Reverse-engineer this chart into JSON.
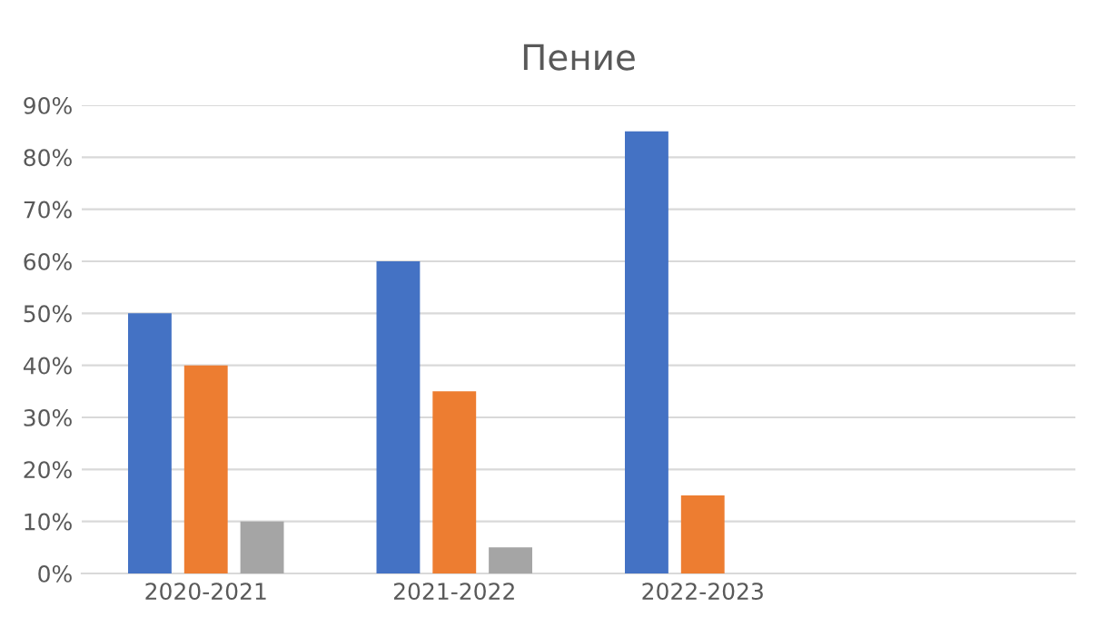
{
  "chart_data": {
    "type": "bar",
    "title": "Пение",
    "categories": [
      "2020-2021",
      "2021-2022",
      "2022-2023",
      null
    ],
    "series": [
      {
        "color": "#4472c4",
        "values": [
          50,
          60,
          85,
          null
        ]
      },
      {
        "color": "#ed7d31",
        "values": [
          40,
          35,
          15,
          null
        ]
      },
      {
        "color": "#a5a5a5",
        "values": [
          10,
          5,
          null,
          null
        ]
      }
    ],
    "ylim": [
      0,
      90
    ],
    "yticks": [
      {
        "value": 0,
        "label": "0%"
      },
      {
        "value": 10,
        "label": "10%"
      },
      {
        "value": 20,
        "label": "20%"
      },
      {
        "value": 30,
        "label": "30%"
      },
      {
        "value": 40,
        "label": "40%"
      },
      {
        "value": 50,
        "label": "50%"
      },
      {
        "value": 60,
        "label": "60%"
      },
      {
        "value": 70,
        "label": "70%"
      },
      {
        "value": 80,
        "label": "80%"
      },
      {
        "value": 90,
        "label": "90%"
      }
    ],
    "grid": "y"
  }
}
